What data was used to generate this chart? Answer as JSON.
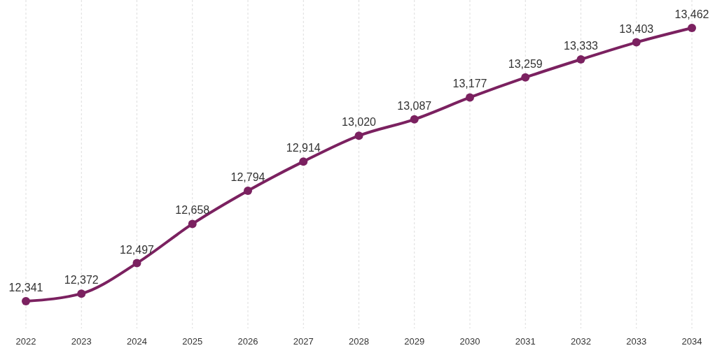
{
  "chart_data": {
    "type": "line",
    "categories": [
      "2022",
      "2023",
      "2024",
      "2025",
      "2026",
      "2027",
      "2028",
      "2029",
      "2030",
      "2031",
      "2032",
      "2033",
      "2034"
    ],
    "series": [
      {
        "color": "#7b2160",
        "values": [
          12341,
          12372,
          12497,
          12658,
          12794,
          12914,
          13020,
          13087,
          13177,
          13259,
          13333,
          13403,
          13462
        ],
        "value_labels": [
          "12,341",
          "12,372",
          "12,497",
          "12,658",
          "12,794",
          "12,914",
          "13,020",
          "13,087",
          "13,177",
          "13,259",
          "13,333",
          "13,403",
          "13,462"
        ]
      }
    ],
    "grid": "x",
    "marker": "circle",
    "line_style": "solid"
  }
}
